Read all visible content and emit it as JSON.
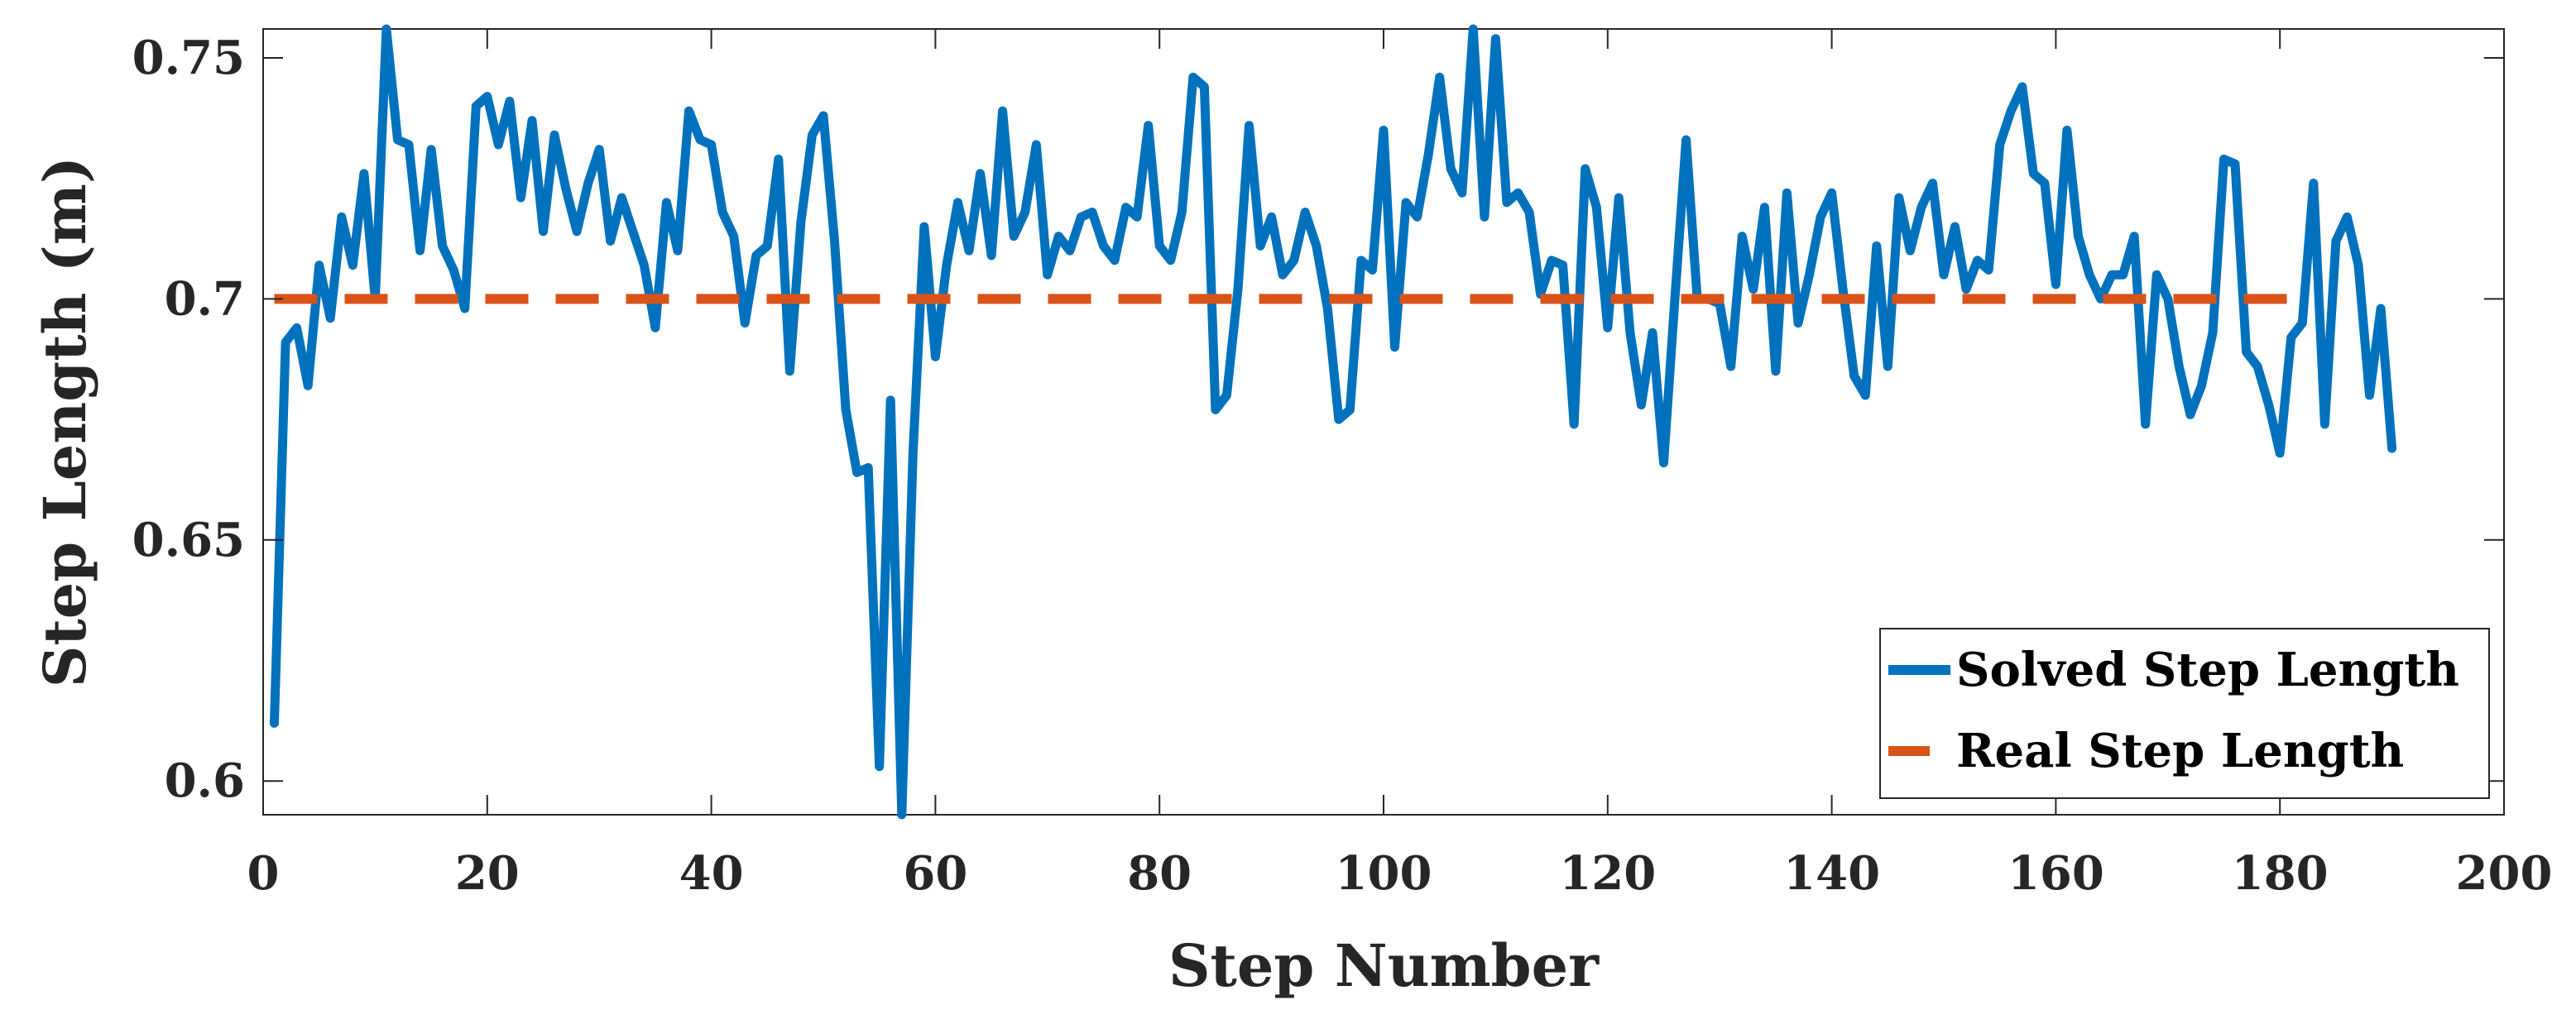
{
  "chart_data": {
    "type": "line",
    "title": "",
    "xlabel": "Step Number",
    "ylabel": "Step Length (m)",
    "xlim": [
      0,
      200
    ],
    "ylim": [
      0.593,
      0.756
    ],
    "xticks": [
      0,
      20,
      40,
      60,
      80,
      100,
      120,
      140,
      160,
      180,
      200
    ],
    "xtick_labels": [
      "0",
      "20",
      "40",
      "60",
      "80",
      "100",
      "120",
      "140",
      "160",
      "180",
      "200"
    ],
    "yticks": [
      0.6,
      0.65,
      0.7,
      0.75
    ],
    "ytick_labels": [
      "0.6",
      "0.65",
      "0.7",
      "0.75"
    ],
    "grid": false,
    "legend_position": "bottom-right",
    "series": [
      {
        "name": "Solved Step Length",
        "color": "#0072BD",
        "style": "solid",
        "x": [
          1,
          2,
          3,
          4,
          5,
          6,
          7,
          8,
          9,
          10,
          11,
          12,
          13,
          14,
          15,
          16,
          17,
          18,
          19,
          20,
          21,
          22,
          23,
          24,
          25,
          26,
          27,
          28,
          29,
          30,
          31,
          32,
          33,
          34,
          35,
          36,
          37,
          38,
          39,
          40,
          41,
          42,
          43,
          44,
          45,
          46,
          47,
          48,
          49,
          50,
          51,
          52,
          53,
          54,
          55,
          56,
          57,
          58,
          59,
          60,
          61,
          62,
          63,
          64,
          65,
          66,
          67,
          68,
          69,
          70,
          71,
          72,
          73,
          74,
          75,
          76,
          77,
          78,
          79,
          80,
          81,
          82,
          83,
          84,
          85,
          86,
          87,
          88,
          89,
          90,
          91,
          92,
          93,
          94,
          95,
          96,
          97,
          98,
          99,
          100,
          101,
          102,
          103,
          104,
          105,
          106,
          107,
          108,
          109,
          110,
          111,
          112,
          113,
          114,
          115,
          116,
          117,
          118,
          119,
          120,
          121,
          122,
          123,
          124,
          125,
          126,
          127,
          128,
          129,
          130,
          131,
          132,
          133,
          134,
          135,
          136,
          137,
          138,
          139,
          140,
          141,
          142,
          143,
          144,
          145,
          146,
          147,
          148,
          149,
          150,
          151,
          152,
          153,
          154,
          155,
          156,
          157,
          158,
          159,
          160,
          161,
          162,
          163,
          164,
          165,
          166,
          167,
          168,
          169,
          170,
          171,
          172,
          173,
          174,
          175,
          176,
          177,
          178,
          179,
          180,
          181,
          182,
          183,
          184,
          185,
          186,
          187,
          188,
          189,
          190
        ],
        "values": [
          0.612,
          0.691,
          0.694,
          0.682,
          0.707,
          0.696,
          0.717,
          0.707,
          0.726,
          0.7,
          0.756,
          0.733,
          0.732,
          0.71,
          0.731,
          0.711,
          0.706,
          0.698,
          0.74,
          0.742,
          0.732,
          0.741,
          0.721,
          0.737,
          0.714,
          0.734,
          0.723,
          0.714,
          0.724,
          0.731,
          0.712,
          0.721,
          0.714,
          0.707,
          0.694,
          0.72,
          0.71,
          0.739,
          0.733,
          0.732,
          0.718,
          0.713,
          0.695,
          0.709,
          0.711,
          0.729,
          0.685,
          0.716,
          0.734,
          0.738,
          0.712,
          0.677,
          0.664,
          0.665,
          0.603,
          0.679,
          0.593,
          0.668,
          0.715,
          0.688,
          0.707,
          0.72,
          0.71,
          0.726,
          0.709,
          0.739,
          0.713,
          0.718,
          0.732,
          0.705,
          0.713,
          0.71,
          0.717,
          0.718,
          0.711,
          0.708,
          0.719,
          0.717,
          0.736,
          0.711,
          0.708,
          0.718,
          0.746,
          0.744,
          0.677,
          0.68,
          0.702,
          0.736,
          0.711,
          0.717,
          0.705,
          0.708,
          0.718,
          0.711,
          0.698,
          0.675,
          0.677,
          0.708,
          0.706,
          0.735,
          0.69,
          0.72,
          0.717,
          0.73,
          0.746,
          0.727,
          0.722,
          0.756,
          0.717,
          0.754,
          0.72,
          0.722,
          0.718,
          0.701,
          0.708,
          0.707,
          0.674,
          0.727,
          0.719,
          0.694,
          0.721,
          0.693,
          0.678,
          0.693,
          0.666,
          0.7,
          0.733,
          0.7,
          0.7,
          0.699,
          0.686,
          0.713,
          0.702,
          0.719,
          0.685,
          0.722,
          0.695,
          0.705,
          0.717,
          0.722,
          0.702,
          0.684,
          0.68,
          0.711,
          0.686,
          0.721,
          0.71,
          0.719,
          0.724,
          0.705,
          0.715,
          0.702,
          0.708,
          0.706,
          0.732,
          0.739,
          0.744,
          0.726,
          0.724,
          0.703,
          0.735,
          0.713,
          0.705,
          0.7,
          0.705,
          0.705,
          0.713,
          0.674,
          0.705,
          0.7,
          0.686,
          0.676,
          0.682,
          0.693,
          0.729,
          0.728,
          0.689,
          0.686,
          0.678,
          0.668,
          0.692,
          0.695,
          0.724,
          0.674,
          0.712,
          0.717,
          0.707,
          0.68,
          0.698,
          0.669
        ]
      },
      {
        "name": "Real Step Length",
        "color": "#D95319",
        "style": "dashed",
        "x": [
          1,
          183
        ],
        "values": [
          0.7,
          0.7
        ]
      }
    ]
  }
}
